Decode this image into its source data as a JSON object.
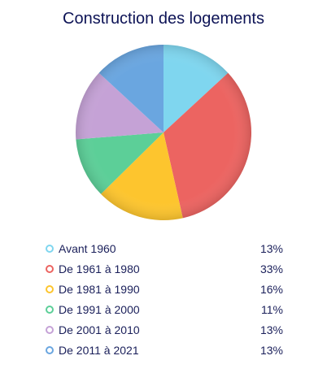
{
  "chart_data": {
    "type": "pie",
    "title": "Construction des logements",
    "categories": [
      "Avant 1960",
      "De 1961 à 1980",
      "De 1981 à 1990",
      "De 1991 à 2000",
      "De 2001 à 2010",
      "De 2011 à 2021"
    ],
    "values": [
      13,
      33,
      16,
      11,
      13,
      13
    ],
    "value_labels": [
      "13%",
      "33%",
      "16%",
      "11%",
      "13%",
      "13%"
    ],
    "colors": [
      "#7fd6ef",
      "#ec6461",
      "#fdc52e",
      "#5ccf98",
      "#c5a2d6",
      "#6aa6e0"
    ],
    "legend_position": "bottom"
  }
}
